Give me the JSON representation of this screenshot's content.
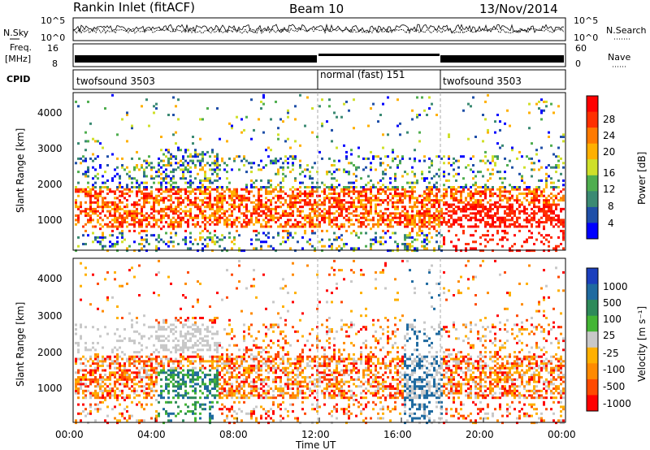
{
  "header": {
    "station": "Rankin Inlet (fitACF)",
    "beam": "Beam 10",
    "date": "13/Nov/2014"
  },
  "noise_panel": {
    "left_label": "N.Sky",
    "right_label": "N.Search",
    "left_ticks": [
      "10^5",
      "10^0"
    ],
    "right_ticks": [
      "10^5",
      "10^0"
    ]
  },
  "freq_panel": {
    "left_label_line1": "Freq.",
    "left_label_line2": "[MHz]",
    "left_ticks": [
      "16",
      "8"
    ],
    "right_label": "Nave",
    "right_ticks": [
      "60",
      "0"
    ]
  },
  "cpid_panel": {
    "label": "CPID",
    "segments": [
      {
        "label": "twofsound 3503",
        "start_hour": 0,
        "end_hour": 12
      },
      {
        "label": "normal (fast) 151",
        "start_hour": 12,
        "end_hour": 18
      },
      {
        "label": "twofsound 3503",
        "start_hour": 18,
        "end_hour": 24
      }
    ]
  },
  "power_panel": {
    "ylabel": "Slant Range [km]",
    "yticks": [
      "1000",
      "2000",
      "3000",
      "4000"
    ],
    "colorbar_label": "Power [dB]",
    "colorbar_ticks": [
      "4",
      "8",
      "12",
      "16",
      "20",
      "24",
      "28"
    ],
    "colors": [
      "#0000ff",
      "#1f4fa8",
      "#3b8a73",
      "#4fae4f",
      "#cfe02a",
      "#ffb000",
      "#ff7a00",
      "#ff3000",
      "#ff0000"
    ]
  },
  "velocity_panel": {
    "ylabel": "Slant Range [km]",
    "yticks": [
      "1000",
      "2000",
      "3000",
      "4000"
    ],
    "colorbar_label": "Velocity [m s⁻¹]",
    "colorbar_ticks": [
      "1000",
      "500",
      "100",
      "25",
      "-25",
      "-100",
      "-500",
      "-1000"
    ],
    "colors": [
      "#1b3fbd",
      "#1f6aa0",
      "#2e8a5a",
      "#44b535",
      "#c8c8c8",
      "#ffb000",
      "#ff8a00",
      "#ff4a00",
      "#ff0000"
    ]
  },
  "xaxis": {
    "ticks": [
      "00:00",
      "04:00",
      "08:00",
      "12:00",
      "16:00",
      "20:00",
      "00:00"
    ],
    "label": "Time UT"
  },
  "chart_data": [
    {
      "type": "line",
      "panel": "noise",
      "series": [
        {
          "name": "N.Sky"
        },
        {
          "name": "N.Search"
        }
      ],
      "x_range_hours": [
        0,
        24
      ]
    },
    {
      "type": "line",
      "panel": "frequency",
      "series": [
        {
          "name": "Freq."
        },
        {
          "name": "Nave"
        }
      ],
      "approx_freq_mhz": {
        "00:00-12:00": 11,
        "12:00-18:00": 12,
        "18:00-24:00": 11
      },
      "x_range_hours": [
        0,
        24
      ]
    },
    {
      "type": "heatmap",
      "panel": "power",
      "xlabel": "Time UT",
      "ylabel": "Slant Range [km]",
      "xlim_hours": [
        0,
        24
      ],
      "ylim_km": [
        180,
        4500
      ],
      "colorbar_label": "Power [dB]",
      "colorbar_ticks": [
        4,
        8,
        12,
        16,
        20,
        24,
        28
      ],
      "dominant_echo_band_km": [
        800,
        2000
      ]
    },
    {
      "type": "heatmap",
      "panel": "velocity",
      "xlabel": "Time UT",
      "ylabel": "Slant Range [km]",
      "xlim_hours": [
        0,
        24
      ],
      "ylim_km": [
        180,
        4500
      ],
      "colorbar_label": "Velocity [m s⁻¹]",
      "colorbar_ticks": [
        1000,
        500,
        100,
        25,
        -25,
        -100,
        -500,
        -1000
      ],
      "dominant_echo_band_km": [
        800,
        2000
      ]
    }
  ]
}
